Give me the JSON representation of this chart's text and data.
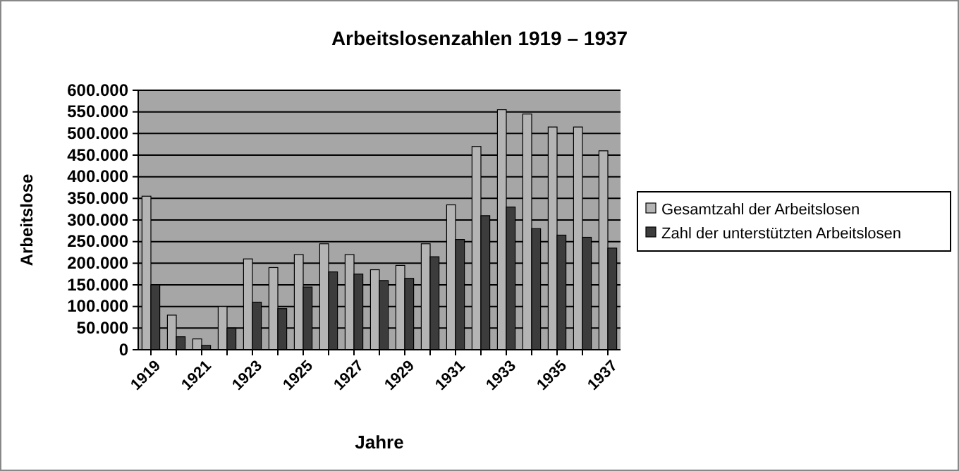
{
  "chart_data": {
    "type": "bar",
    "title": "Arbeitslosenzahlen 1919 – 1937",
    "xlabel": "Jahre",
    "ylabel": "Arbeitslose",
    "categories": [
      "1919",
      null,
      "1921",
      null,
      "1923",
      null,
      "1925",
      null,
      "1927",
      null,
      "1929",
      null,
      "1931",
      null,
      "1933",
      null,
      "1935",
      null,
      "1937"
    ],
    "series": [
      {
        "name": "Gesamtzahl der Arbeitslosen",
        "color": "#b4b4b4",
        "values": [
          355000,
          80000,
          25000,
          100000,
          210000,
          190000,
          220000,
          245000,
          220000,
          185000,
          195000,
          245000,
          335000,
          470000,
          555000,
          545000,
          515000,
          515000,
          460000
        ]
      },
      {
        "name": "Zahl der unterstützten Arbeitslosen",
        "color": "#3c3c3c",
        "values": [
          150000,
          30000,
          10000,
          50000,
          110000,
          95000,
          145000,
          180000,
          175000,
          160000,
          165000,
          215000,
          255000,
          310000,
          330000,
          280000,
          265000,
          260000,
          235000
        ]
      }
    ],
    "ylim": [
      0,
      600000
    ],
    "yticks": [
      {
        "value": 0,
        "label": "0"
      },
      {
        "value": 50000,
        "label": "50.000"
      },
      {
        "value": 100000,
        "label": "100.000"
      },
      {
        "value": 150000,
        "label": "150.000"
      },
      {
        "value": 200000,
        "label": "200.000"
      },
      {
        "value": 250000,
        "label": "250.000"
      },
      {
        "value": 300000,
        "label": "300.000"
      },
      {
        "value": 350000,
        "label": "350.000"
      },
      {
        "value": 400000,
        "label": "400.000"
      },
      {
        "value": 450000,
        "label": "450.000"
      },
      {
        "value": 500000,
        "label": "500.000"
      },
      {
        "value": 550000,
        "label": "550.000"
      },
      {
        "value": 600000,
        "label": "600.000"
      }
    ],
    "grid": "y",
    "legend": "right"
  }
}
